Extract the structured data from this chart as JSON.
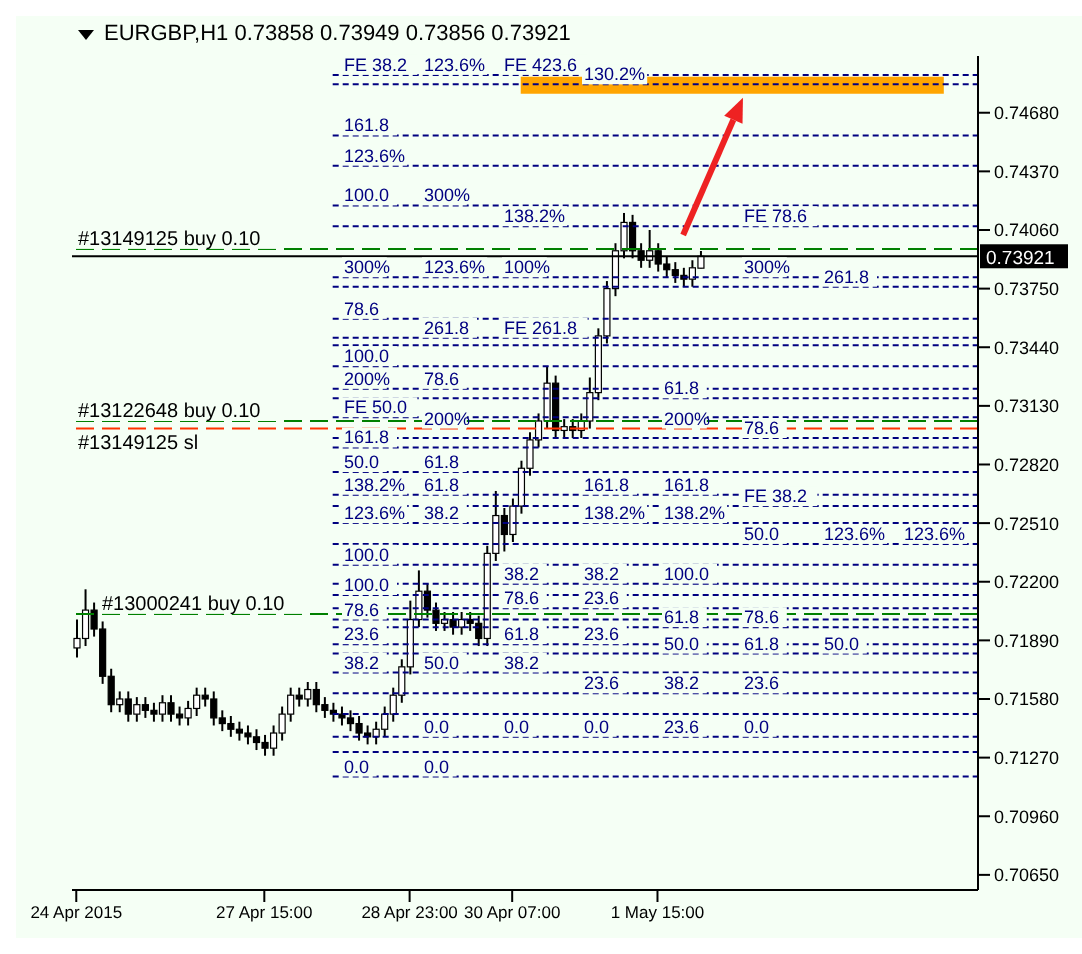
{
  "chart_data": {
    "type": "candlestick",
    "title": "EURGBP,H1  0.73858 0.73949 0.73856 0.73921",
    "categories": [
      "24 Apr 2015",
      null,
      null,
      null,
      null,
      null,
      null,
      null,
      null,
      null,
      null,
      null,
      null,
      null,
      null,
      null,
      null,
      null,
      null,
      null,
      null,
      null,
      "27 Apr 15:00",
      null,
      null,
      null,
      null,
      null,
      null,
      null,
      null,
      null,
      null,
      null,
      null,
      null,
      null,
      null,
      null,
      "28 Apr 23:00",
      null,
      null,
      null,
      null,
      null,
      null,
      null,
      null,
      null,
      null,
      null,
      "30 Apr 07:00",
      null,
      null,
      null,
      null,
      null,
      null,
      null,
      null,
      null,
      null,
      null,
      null,
      null,
      null,
      null,
      null,
      "1 May 15:00",
      null,
      null,
      null,
      null,
      null,
      null,
      null,
      null,
      null,
      null,
      null,
      null,
      null,
      null,
      null,
      null,
      null,
      null,
      null,
      null,
      null,
      null,
      null,
      null,
      null,
      null,
      null,
      null,
      null,
      null,
      null,
      null,
      null,
      null,
      null,
      null,
      null
    ],
    "ohlc": [
      [
        0.7185,
        0.72,
        0.718,
        0.719
      ],
      [
        0.719,
        0.7216,
        0.7186,
        0.7205
      ],
      [
        0.7205,
        0.7209,
        0.7191,
        0.7195
      ],
      [
        0.7195,
        0.7199,
        0.7166,
        0.717
      ],
      [
        0.717,
        0.7174,
        0.7151,
        0.7155
      ],
      [
        0.7155,
        0.7162,
        0.7151,
        0.7158
      ],
      [
        0.7158,
        0.7162,
        0.7146,
        0.715
      ],
      [
        0.715,
        0.7159,
        0.7146,
        0.7155
      ],
      [
        0.7155,
        0.7159,
        0.7148,
        0.7152
      ],
      [
        0.7152,
        0.7156,
        0.7146,
        0.715
      ],
      [
        0.715,
        0.716,
        0.7146,
        0.7156
      ],
      [
        0.7156,
        0.716,
        0.7146,
        0.715
      ],
      [
        0.715,
        0.7154,
        0.7144,
        0.7148
      ],
      [
        0.7148,
        0.7157,
        0.7144,
        0.7153
      ],
      [
        0.7153,
        0.7164,
        0.7149,
        0.716
      ],
      [
        0.716,
        0.7164,
        0.7154,
        0.7158
      ],
      [
        0.7158,
        0.7162,
        0.7144,
        0.7148
      ],
      [
        0.7148,
        0.7152,
        0.7141,
        0.7145
      ],
      [
        0.7145,
        0.7149,
        0.7138,
        0.7142
      ],
      [
        0.7142,
        0.7146,
        0.7136,
        0.714
      ],
      [
        0.714,
        0.7144,
        0.7134,
        0.7138
      ],
      [
        0.7138,
        0.7142,
        0.7131,
        0.7135
      ],
      [
        0.7135,
        0.7139,
        0.7128,
        0.7132
      ],
      [
        0.7132,
        0.7144,
        0.7128,
        0.714
      ],
      [
        0.714,
        0.7154,
        0.7136,
        0.715
      ],
      [
        0.715,
        0.7164,
        0.7146,
        0.716
      ],
      [
        0.716,
        0.7164,
        0.7154,
        0.7158
      ],
      [
        0.7158,
        0.7167,
        0.7154,
        0.7163
      ],
      [
        0.7163,
        0.7167,
        0.7151,
        0.7155
      ],
      [
        0.7155,
        0.7159,
        0.7148,
        0.7152
      ],
      [
        0.7152,
        0.7156,
        0.7146,
        0.715
      ],
      [
        0.715,
        0.7154,
        0.7144,
        0.7148
      ],
      [
        0.7148,
        0.7152,
        0.7141,
        0.7145
      ],
      [
        0.7145,
        0.7149,
        0.7136,
        0.714
      ],
      [
        0.714,
        0.7144,
        0.7134,
        0.7138
      ],
      [
        0.7138,
        0.7146,
        0.7134,
        0.7142
      ],
      [
        0.7142,
        0.7154,
        0.7138,
        0.715
      ],
      [
        0.715,
        0.7164,
        0.7146,
        0.716
      ],
      [
        0.716,
        0.7179,
        0.7156,
        0.7175
      ],
      [
        0.7175,
        0.721,
        0.7171,
        0.72
      ],
      [
        0.72,
        0.7226,
        0.7196,
        0.7215
      ],
      [
        0.7215,
        0.7219,
        0.7201,
        0.7205
      ],
      [
        0.7205,
        0.7209,
        0.7194,
        0.7198
      ],
      [
        0.7198,
        0.7204,
        0.7194,
        0.72
      ],
      [
        0.72,
        0.7204,
        0.7192,
        0.7196
      ],
      [
        0.7196,
        0.7204,
        0.7192,
        0.72
      ],
      [
        0.72,
        0.7204,
        0.7194,
        0.7198
      ],
      [
        0.7198,
        0.7202,
        0.7186,
        0.719
      ],
      [
        0.719,
        0.7239,
        0.7186,
        0.7235
      ],
      [
        0.7235,
        0.7268,
        0.7231,
        0.7255
      ],
      [
        0.7255,
        0.7259,
        0.7236,
        0.7245
      ],
      [
        0.7245,
        0.7264,
        0.7241,
        0.726
      ],
      [
        0.726,
        0.7284,
        0.7256,
        0.728
      ],
      [
        0.728,
        0.7299,
        0.7276,
        0.7295
      ],
      [
        0.7295,
        0.7309,
        0.7291,
        0.7305
      ],
      [
        0.7305,
        0.7334,
        0.7301,
        0.7325
      ],
      [
        0.7325,
        0.7329,
        0.7296,
        0.73
      ],
      [
        0.73,
        0.7306,
        0.7296,
        0.7302
      ],
      [
        0.7302,
        0.7306,
        0.7296,
        0.73
      ],
      [
        0.73,
        0.7309,
        0.7296,
        0.7305
      ],
      [
        0.7305,
        0.7328,
        0.7301,
        0.732
      ],
      [
        0.732,
        0.7354,
        0.7316,
        0.735
      ],
      [
        0.735,
        0.7379,
        0.7346,
        0.7375
      ],
      [
        0.7375,
        0.7399,
        0.7371,
        0.7395
      ],
      [
        0.7395,
        0.7415,
        0.7391,
        0.741
      ],
      [
        0.741,
        0.7414,
        0.7391,
        0.7395
      ],
      [
        0.7395,
        0.7399,
        0.7386,
        0.739
      ],
      [
        0.739,
        0.7406,
        0.7386,
        0.7395
      ],
      [
        0.7395,
        0.7399,
        0.7384,
        0.7388
      ],
      [
        0.7388,
        0.7392,
        0.7381,
        0.7385
      ],
      [
        0.7385,
        0.7389,
        0.7378,
        0.7382
      ],
      [
        0.7382,
        0.7386,
        0.7376,
        0.738
      ],
      [
        0.738,
        0.739,
        0.7376,
        0.7386
      ],
      [
        0.73858,
        0.73949,
        0.73856,
        0.73921
      ],
      null,
      null,
      null,
      null,
      null,
      null,
      null,
      null,
      null,
      null,
      null,
      null,
      null,
      null,
      null,
      null,
      null,
      null,
      null,
      null,
      null,
      null,
      null,
      null,
      null,
      null,
      null,
      null,
      null,
      null,
      null,
      null
    ],
    "ylim": [
      0.7057,
      0.7498
    ],
    "yticks": [
      {
        "value": 0.7065,
        "label": "0.70650"
      },
      {
        "value": 0.7096,
        "label": "0.70960"
      },
      {
        "value": 0.7127,
        "label": "0.71270"
      },
      {
        "value": 0.7158,
        "label": "0.71580"
      },
      {
        "value": 0.7189,
        "label": "0.71890"
      },
      {
        "value": 0.722,
        "label": "0.72200"
      },
      {
        "value": 0.7251,
        "label": "0.72510"
      },
      {
        "value": 0.7282,
        "label": "0.72820"
      },
      {
        "value": 0.7313,
        "label": "0.73130"
      },
      {
        "value": 0.7344,
        "label": "0.73440"
      },
      {
        "value": 0.7375,
        "label": "0.73750"
      },
      {
        "value": 0.7406,
        "label": "0.74060"
      },
      {
        "value": 0.7437,
        "label": "0.74370"
      },
      {
        "value": 0.7468,
        "label": "0.74680"
      }
    ],
    "bands": [
      {
        "axis": "y",
        "from": 0.7478,
        "to": 0.7487,
        "color": "#ffa500"
      }
    ],
    "ref_lines": [
      {
        "axis": "y",
        "value": 0.7488,
        "color": "#000080",
        "line_style": "dotted"
      },
      {
        "axis": "y",
        "value": 0.7483,
        "color": "#000080",
        "line_style": "dotted"
      },
      {
        "axis": "y",
        "value": 0.7456,
        "color": "#000080",
        "line_style": "dotted"
      },
      {
        "axis": "y",
        "value": 0.744,
        "color": "#000080",
        "line_style": "dotted"
      },
      {
        "axis": "y",
        "value": 0.7419,
        "color": "#000080",
        "line_style": "dotted"
      },
      {
        "axis": "y",
        "value": 0.7408,
        "color": "#000080",
        "line_style": "dotted"
      },
      {
        "axis": "y",
        "value": 0.7396,
        "label": "#13149125 buy 0.10",
        "color": "#008000",
        "line_style": "dashed"
      },
      {
        "axis": "y",
        "value": 0.73921,
        "label": "0.73921",
        "color": "#000000",
        "line_style": "solid"
      },
      {
        "axis": "y",
        "value": 0.7381,
        "color": "#000080",
        "line_style": "dotted"
      },
      {
        "axis": "y",
        "value": 0.7376,
        "color": "#000080",
        "line_style": "dotted"
      },
      {
        "axis": "y",
        "value": 0.7359,
        "color": "#000080",
        "line_style": "dotted"
      },
      {
        "axis": "y",
        "value": 0.7349,
        "color": "#000080",
        "line_style": "dotted"
      },
      {
        "axis": "y",
        "value": 0.7345,
        "color": "#000080",
        "line_style": "dotted"
      },
      {
        "axis": "y",
        "value": 0.7334,
        "color": "#000080",
        "line_style": "dotted"
      },
      {
        "axis": "y",
        "value": 0.7322,
        "color": "#000080",
        "line_style": "dotted"
      },
      {
        "axis": "y",
        "value": 0.7317,
        "color": "#000080",
        "line_style": "dotted"
      },
      {
        "axis": "y",
        "value": 0.7307,
        "color": "#000080",
        "line_style": "dotted"
      },
      {
        "axis": "y",
        "value": 0.7305,
        "label": "#13122648 buy 0.10",
        "color": "#008000",
        "line_style": "dashed"
      },
      {
        "axis": "y",
        "value": 0.7301,
        "label": "#13149125 sl",
        "color": "#ff3300",
        "line_style": "dashed"
      },
      {
        "axis": "y",
        "value": 0.7296,
        "color": "#000080",
        "line_style": "dotted"
      },
      {
        "axis": "y",
        "value": 0.7291,
        "color": "#000080",
        "line_style": "dotted"
      },
      {
        "axis": "y",
        "value": 0.7278,
        "color": "#000080",
        "line_style": "dotted"
      },
      {
        "axis": "y",
        "value": 0.7266,
        "color": "#000080",
        "line_style": "dotted"
      },
      {
        "axis": "y",
        "value": 0.726,
        "color": "#000080",
        "line_style": "dotted"
      },
      {
        "axis": "y",
        "value": 0.7251,
        "color": "#000080",
        "line_style": "dotted"
      },
      {
        "axis": "y",
        "value": 0.724,
        "color": "#000080",
        "line_style": "dotted"
      },
      {
        "axis": "y",
        "value": 0.7229,
        "color": "#000080",
        "line_style": "dotted"
      },
      {
        "axis": "y",
        "value": 0.7219,
        "color": "#000080",
        "line_style": "dotted"
      },
      {
        "axis": "y",
        "value": 0.7213,
        "color": "#000080",
        "line_style": "dotted"
      },
      {
        "axis": "y",
        "value": 0.7206,
        "color": "#000080",
        "line_style": "dotted"
      },
      {
        "axis": "y",
        "value": 0.7203,
        "label": "#13000241 buy 0.10",
        "color": "#008000",
        "line_style": "dashed"
      },
      {
        "axis": "y",
        "value": 0.72,
        "color": "#000080",
        "line_style": "dotted"
      },
      {
        "axis": "y",
        "value": 0.7196,
        "color": "#000080",
        "line_style": "dotted"
      },
      {
        "axis": "y",
        "value": 0.7187,
        "color": "#000080",
        "line_style": "dotted"
      },
      {
        "axis": "y",
        "value": 0.7182,
        "color": "#000080",
        "line_style": "dotted"
      },
      {
        "axis": "y",
        "value": 0.7172,
        "color": "#000080",
        "line_style": "dotted"
      },
      {
        "axis": "y",
        "value": 0.7161,
        "color": "#000080",
        "line_style": "dotted"
      },
      {
        "axis": "y",
        "value": 0.715,
        "color": "#000080",
        "line_style": "dotted"
      },
      {
        "axis": "y",
        "value": 0.7138,
        "color": "#000080",
        "line_style": "dotted"
      },
      {
        "axis": "y",
        "value": 0.713,
        "color": "#000080",
        "line_style": "dotted"
      },
      {
        "axis": "y",
        "value": 0.7117,
        "color": "#000080",
        "line_style": "dotted"
      }
    ],
    "annotations": [
      {
        "text": "FE 38.2",
        "y": 0.7488
      },
      {
        "text": "123.6%",
        "y": 0.7488
      },
      {
        "text": "FE 423.6",
        "y": 0.7488
      },
      {
        "text": "130.2%",
        "y": 0.7483
      },
      {
        "text": "161.8",
        "y": 0.7456
      },
      {
        "text": "123.6%",
        "y": 0.744
      },
      {
        "text": "100.0",
        "y": 0.7419
      },
      {
        "text": "300%",
        "y": 0.7419
      },
      {
        "text": "138.2%",
        "y": 0.7408
      },
      {
        "text": "FE 78.6",
        "y": 0.7408
      },
      {
        "text": "300%",
        "y": 0.7381
      },
      {
        "text": "123.6%",
        "y": 0.7381
      },
      {
        "text": "100%",
        "y": 0.7381
      },
      {
        "text": "300%",
        "y": 0.7381
      },
      {
        "text": "261.8",
        "y": 0.7376
      },
      {
        "text": "78.6",
        "y": 0.7359
      },
      {
        "text": "261.8",
        "y": 0.7349
      },
      {
        "text": "FE 261.8",
        "y": 0.7349
      },
      {
        "text": "100.0",
        "y": 0.7334
      },
      {
        "text": "200%",
        "y": 0.7322
      },
      {
        "text": "78.6",
        "y": 0.7322
      },
      {
        "text": "61.8",
        "y": 0.7317
      },
      {
        "text": "FE 50.0",
        "y": 0.7307
      },
      {
        "text": "200%",
        "y": 0.7301
      },
      {
        "text": "200%",
        "y": 0.7301
      },
      {
        "text": "78.6",
        "y": 0.7296
      },
      {
        "text": "161.8",
        "y": 0.7291
      },
      {
        "text": "50.0",
        "y": 0.7278
      },
      {
        "text": "61.8",
        "y": 0.7278
      },
      {
        "text": "138.2%",
        "y": 0.7266
      },
      {
        "text": "61.8",
        "y": 0.7266
      },
      {
        "text": "161.8",
        "y": 0.7266
      },
      {
        "text": "161.8",
        "y": 0.7266
      },
      {
        "text": "FE 38.2",
        "y": 0.726
      },
      {
        "text": "123.6%",
        "y": 0.7251
      },
      {
        "text": "38.2",
        "y": 0.7251
      },
      {
        "text": "138.2%",
        "y": 0.7251
      },
      {
        "text": "138.2%",
        "y": 0.7251
      },
      {
        "text": "50.0",
        "y": 0.724
      },
      {
        "text": "123.6%",
        "y": 0.724
      },
      {
        "text": "123.6%",
        "y": 0.724
      },
      {
        "text": "100.0",
        "y": 0.7229
      },
      {
        "text": "38.2",
        "y": 0.7219
      },
      {
        "text": "38.2",
        "y": 0.7219
      },
      {
        "text": "100.0",
        "y": 0.7219
      },
      {
        "text": "100.0",
        "y": 0.7213
      },
      {
        "text": "78.6",
        "y": 0.7206
      },
      {
        "text": "23.6",
        "y": 0.7206
      },
      {
        "text": "78.6",
        "y": 0.72
      },
      {
        "text": "61.8",
        "y": 0.7196
      },
      {
        "text": "78.6",
        "y": 0.7196
      },
      {
        "text": "23.6",
        "y": 0.7187
      },
      {
        "text": "61.8",
        "y": 0.7187
      },
      {
        "text": "23.6",
        "y": 0.7187
      },
      {
        "text": "50.0",
        "y": 0.7182
      },
      {
        "text": "61.8",
        "y": 0.7182
      },
      {
        "text": "50.0",
        "y": 0.7182
      },
      {
        "text": "38.2",
        "y": 0.7172
      },
      {
        "text": "50.0",
        "y": 0.7172
      },
      {
        "text": "38.2",
        "y": 0.7172
      },
      {
        "text": "23.6",
        "y": 0.7161
      },
      {
        "text": "38.2",
        "y": 0.7161
      },
      {
        "text": "23.6",
        "y": 0.7161
      },
      {
        "text": "0.0",
        "y": 0.7138
      },
      {
        "text": "0.0",
        "y": 0.7138
      },
      {
        "text": "0.0",
        "y": 0.7138
      },
      {
        "text": "23.6",
        "y": 0.7138
      },
      {
        "text": "0.0",
        "y": 0.7138
      },
      {
        "text": "0.0",
        "y": 0.7117
      },
      {
        "text": "0.0",
        "y": 0.7117
      }
    ]
  }
}
